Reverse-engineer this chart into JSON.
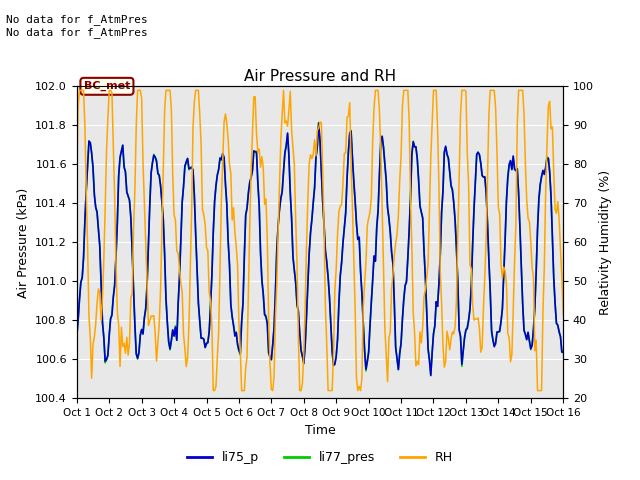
{
  "title": "Air Pressure and RH",
  "xlabel": "Time",
  "ylabel_left": "Air Pressure (kPa)",
  "ylabel_right": "Relativity Humidity (%)",
  "annotation_text": "No data for f_AtmPres\nNo data for f_AtmPres",
  "box_label": "BC_met",
  "ylim_left": [
    100.4,
    102.0
  ],
  "ylim_right": [
    20,
    100
  ],
  "yticks_left": [
    100.4,
    100.6,
    100.8,
    101.0,
    101.2,
    101.4,
    101.6,
    101.8,
    102.0
  ],
  "yticks_right": [
    20,
    30,
    40,
    50,
    60,
    70,
    80,
    90,
    100
  ],
  "xtick_labels": [
    "Oct 1",
    "Oct 2",
    "Oct 3",
    "Oct 4",
    "Oct 5",
    "Oct 6",
    "Oct 7",
    "Oct 8",
    "Oct 9",
    "Oct 10",
    "Oct 11",
    "Oct 12",
    "Oct 13",
    "Oct 14",
    "Oct 15",
    "Oct 16"
  ],
  "color_li75": "#0000cc",
  "color_li77": "#00cc00",
  "color_rh": "#ffa500",
  "background_color": "#e8e8e8",
  "legend_labels": [
    "li75_p",
    "li77_pres",
    "RH"
  ],
  "num_points": 361,
  "seed": 42,
  "fig_width": 6.4,
  "fig_height": 4.8,
  "dpi": 100
}
